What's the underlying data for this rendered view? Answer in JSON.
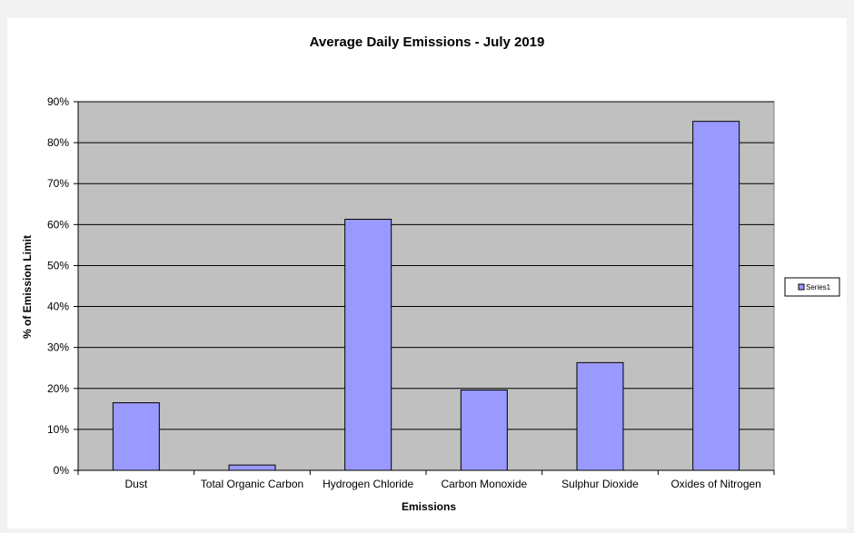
{
  "chart_data": {
    "type": "bar",
    "title": "Average Daily Emissions - July 2019",
    "xlabel": "Emissions",
    "ylabel": "% of Emission Limit",
    "categories": [
      "Dust",
      "Total Organic Carbon",
      "Hydrogen Chloride",
      "Carbon Monoxide",
      "Sulphur Dioxide",
      "Oxides of Nitrogen"
    ],
    "series": [
      {
        "name": "Series1",
        "values": [
          16.5,
          1.3,
          61.3,
          19.6,
          26.3,
          85.2
        ]
      }
    ],
    "ylim": [
      0,
      90
    ],
    "yticks": [
      0,
      10,
      20,
      30,
      40,
      50,
      60,
      70,
      80,
      90
    ],
    "ytick_labels": [
      "0%",
      "10%",
      "20%",
      "30%",
      "40%",
      "50%",
      "60%",
      "70%",
      "80%",
      "90%"
    ],
    "grid": true,
    "legend_position": "right",
    "colors": {
      "bar_fill": "#9999ff",
      "bar_stroke": "#000000",
      "plot_background": "#c0c0c0",
      "chart_background": "#ffffff",
      "page_background": "#f2f2f2"
    }
  }
}
